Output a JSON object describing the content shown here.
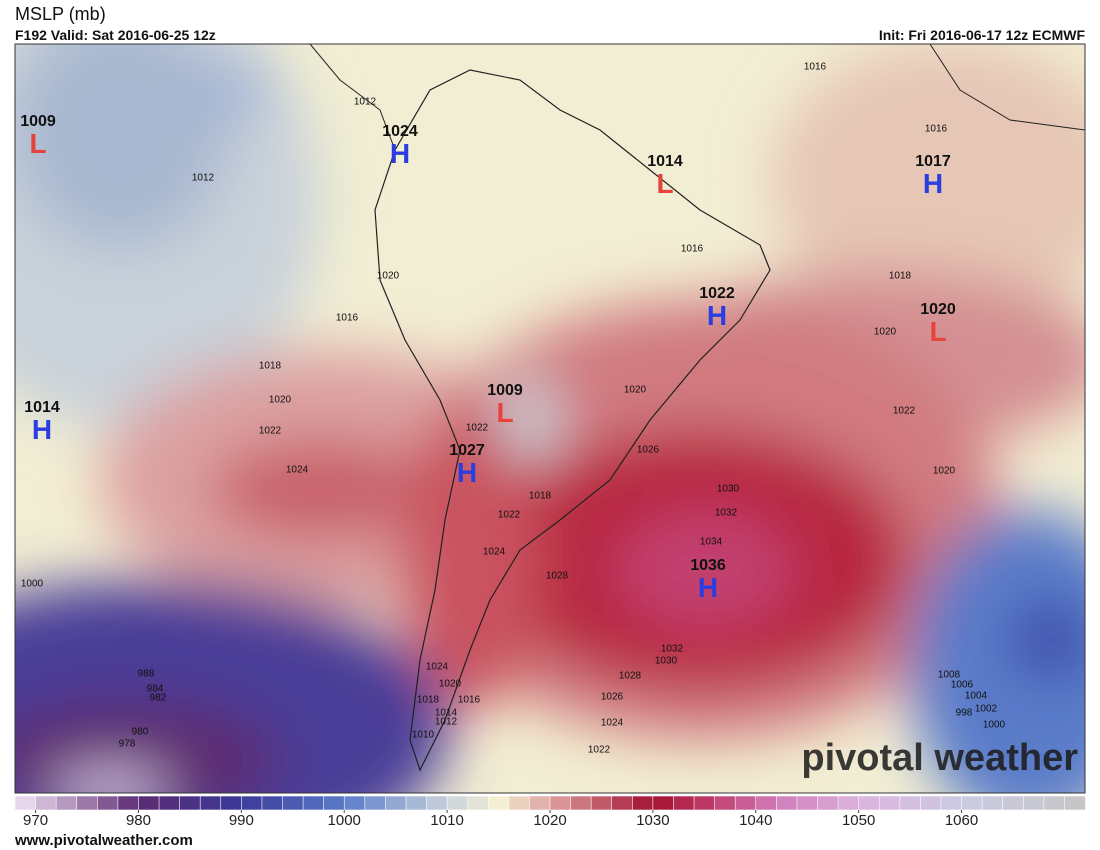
{
  "header": {
    "title": "MSLP (mb)",
    "valid": "F192 Valid: Sat 2016-06-25 12z",
    "init": "Init: Fri 2016-06-17 12z ECMWF"
  },
  "centers": [
    {
      "value": 1009,
      "kind": "L"
    },
    {
      "value": 1024,
      "kind": "H"
    },
    {
      "value": 1014,
      "kind": "L"
    },
    {
      "value": 1017,
      "kind": "H"
    },
    {
      "value": 1022,
      "kind": "H"
    },
    {
      "value": 1020,
      "kind": "L"
    },
    {
      "value": 1014,
      "kind": "H"
    },
    {
      "value": 1009,
      "kind": "L"
    },
    {
      "value": 1027,
      "kind": "H"
    },
    {
      "value": 1036,
      "kind": "H"
    }
  ],
  "center_colors": {
    "H": "#2b3de0",
    "L": "#e8423c"
  },
  "contour_labels": [
    1016,
    1012,
    1016,
    1012,
    1016,
    1018,
    1020,
    1016,
    1020,
    1018,
    1020,
    1020,
    1022,
    1022,
    1022,
    1026,
    1024,
    1020,
    1030,
    1018,
    1032,
    1022,
    1034,
    1024,
    1028,
    1000,
    1032,
    1030,
    988,
    1028,
    1024,
    1020,
    984,
    982,
    1008,
    1006,
    1004,
    1016,
    1018,
    1026,
    1002,
    998,
    1014,
    1012,
    1024,
    1000,
    980,
    978,
    1010,
    1022
  ],
  "colorbar": {
    "lim": [
      968,
      1072
    ],
    "ticks": [
      970,
      980,
      990,
      1000,
      1010,
      1020,
      1030,
      1040,
      1050,
      1060
    ],
    "step": 2,
    "stops": [
      [
        968,
        "#f2e6f4"
      ],
      [
        980,
        "#5c2a72"
      ],
      [
        990,
        "#3b3a98"
      ],
      [
        1000,
        "#5b7cc9"
      ],
      [
        1010,
        "#c9d3dc"
      ],
      [
        1015,
        "#f4efd2"
      ],
      [
        1020,
        "#dea3a2"
      ],
      [
        1030,
        "#a3102f"
      ],
      [
        1036,
        "#c0406e"
      ],
      [
        1042,
        "#cf7cb8"
      ],
      [
        1050,
        "#dcb3dc"
      ],
      [
        1060,
        "#cacae2"
      ],
      [
        1072,
        "#c6c6c6"
      ]
    ]
  },
  "watermark": "pivotal weather",
  "footer": "www.pivotalweather.com"
}
